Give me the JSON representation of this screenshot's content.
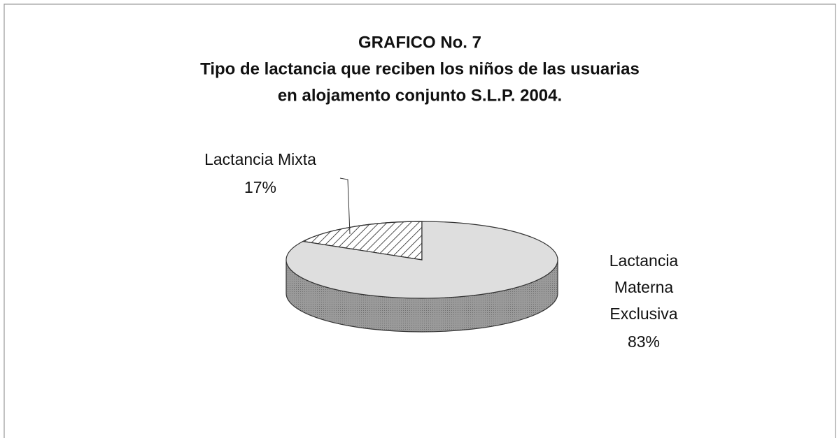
{
  "chart_data": {
    "type": "pie3d",
    "title": "GRAFICO No. 7",
    "subtitle": [
      "Tipo de lactancia que reciben los niños de las usuarias",
      "en alojamento conjunto  S.L.P. 2004."
    ],
    "categories": [
      "Lactancia Mixta",
      "Lactancia Materna Exclusiva"
    ],
    "values": [
      17,
      83
    ],
    "value_labels": [
      "17%",
      "83%"
    ],
    "colors": [
      "#ffffff",
      "#dedede"
    ],
    "hatch": [
      true,
      false
    ]
  }
}
